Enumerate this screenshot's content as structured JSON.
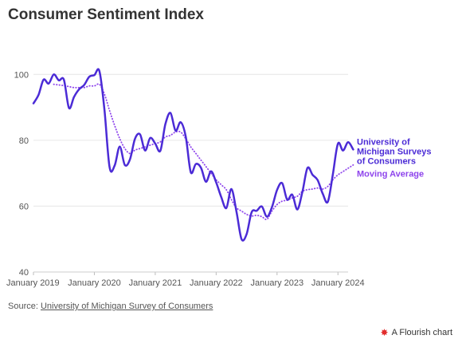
{
  "title": "Consumer Sentiment Index",
  "source": {
    "prefix": "Source: ",
    "link_text": "University of Michigan Survey of Consumers"
  },
  "credit": {
    "icon": "flourish-logo-icon",
    "label": "A Flourish chart"
  },
  "chart_data": {
    "type": "line",
    "title": "Consumer Sentiment Index",
    "xlabel": "",
    "ylabel": "",
    "ylim": [
      40,
      110
    ],
    "yticks": [
      40,
      60,
      80,
      100
    ],
    "xlim": [
      "2019-01",
      "2024-03"
    ],
    "xticks": [
      {
        "date": "2019-01",
        "label": "January 2019"
      },
      {
        "date": "2020-01",
        "label": "January 2020"
      },
      {
        "date": "2021-01",
        "label": "January 2021"
      },
      {
        "date": "2022-01",
        "label": "January 2022"
      },
      {
        "date": "2023-01",
        "label": "January 2023"
      },
      {
        "date": "2024-01",
        "label": "January 2024"
      }
    ],
    "grid": "horizontal",
    "legend": "right of lines, labels at series ends",
    "series": [
      {
        "name": "University of Michigan Surveys of Consumers",
        "label_lines": [
          "University of",
          "Michigan Surveys",
          "of Consumers"
        ],
        "color": "#4b2bd6",
        "style": "solid",
        "points": [
          [
            "2019-01",
            91.2
          ],
          [
            "2019-02",
            93.8
          ],
          [
            "2019-03",
            98.4
          ],
          [
            "2019-04",
            97.2
          ],
          [
            "2019-05",
            100.0
          ],
          [
            "2019-06",
            98.2
          ],
          [
            "2019-07",
            98.4
          ],
          [
            "2019-08",
            89.8
          ],
          [
            "2019-09",
            93.2
          ],
          [
            "2019-10",
            95.5
          ],
          [
            "2019-11",
            96.8
          ],
          [
            "2019-12",
            99.3
          ],
          [
            "2020-01",
            99.8
          ],
          [
            "2020-02",
            101.0
          ],
          [
            "2020-03",
            89.1
          ],
          [
            "2020-04",
            71.8
          ],
          [
            "2020-05",
            72.3
          ],
          [
            "2020-06",
            78.1
          ],
          [
            "2020-07",
            72.5
          ],
          [
            "2020-08",
            74.1
          ],
          [
            "2020-09",
            80.4
          ],
          [
            "2020-10",
            81.8
          ],
          [
            "2020-11",
            76.9
          ],
          [
            "2020-12",
            80.7
          ],
          [
            "2021-01",
            79.0
          ],
          [
            "2021-02",
            76.8
          ],
          [
            "2021-03",
            84.9
          ],
          [
            "2021-04",
            88.3
          ],
          [
            "2021-05",
            82.9
          ],
          [
            "2021-06",
            85.5
          ],
          [
            "2021-07",
            81.2
          ],
          [
            "2021-08",
            70.3
          ],
          [
            "2021-09",
            72.8
          ],
          [
            "2021-10",
            71.7
          ],
          [
            "2021-11",
            67.4
          ],
          [
            "2021-12",
            70.6
          ],
          [
            "2022-01",
            67.2
          ],
          [
            "2022-02",
            62.8
          ],
          [
            "2022-03",
            59.4
          ],
          [
            "2022-04",
            65.2
          ],
          [
            "2022-05",
            58.4
          ],
          [
            "2022-06",
            50.0
          ],
          [
            "2022-07",
            51.5
          ],
          [
            "2022-08",
            58.2
          ],
          [
            "2022-09",
            58.6
          ],
          [
            "2022-10",
            59.9
          ],
          [
            "2022-11",
            56.8
          ],
          [
            "2022-12",
            59.7
          ],
          [
            "2023-01",
            64.9
          ],
          [
            "2023-02",
            67.0
          ],
          [
            "2023-03",
            62.0
          ],
          [
            "2023-04",
            63.5
          ],
          [
            "2023-05",
            59.0
          ],
          [
            "2023-06",
            64.4
          ],
          [
            "2023-07",
            71.6
          ],
          [
            "2023-08",
            69.5
          ],
          [
            "2023-09",
            67.9
          ],
          [
            "2023-10",
            63.8
          ],
          [
            "2023-11",
            61.3
          ],
          [
            "2023-12",
            69.7
          ],
          [
            "2024-01",
            79.0
          ],
          [
            "2024-02",
            76.9
          ],
          [
            "2024-03",
            79.4
          ],
          [
            "2024-04",
            77.2
          ]
        ]
      },
      {
        "name": "Moving Average",
        "label_lines": [
          "Moving Average"
        ],
        "color": "#8e44ec",
        "style": "dotted",
        "points": [
          [
            "2019-05",
            97.0
          ],
          [
            "2019-06",
            96.8
          ],
          [
            "2019-07",
            96.6
          ],
          [
            "2019-08",
            96.3
          ],
          [
            "2019-09",
            96.0
          ],
          [
            "2019-10",
            96.0
          ],
          [
            "2019-11",
            96.0
          ],
          [
            "2019-12",
            96.5
          ],
          [
            "2020-01",
            96.5
          ],
          [
            "2020-02",
            97.0
          ],
          [
            "2020-03",
            94.0
          ],
          [
            "2020-04",
            89.0
          ],
          [
            "2020-05",
            84.5
          ],
          [
            "2020-06",
            80.5
          ],
          [
            "2020-07",
            77.5
          ],
          [
            "2020-08",
            76.0
          ],
          [
            "2020-09",
            77.0
          ],
          [
            "2020-10",
            77.5
          ],
          [
            "2020-11",
            78.0
          ],
          [
            "2020-12",
            78.5
          ],
          [
            "2021-01",
            79.0
          ],
          [
            "2021-02",
            79.5
          ],
          [
            "2021-03",
            81.0
          ],
          [
            "2021-04",
            81.5
          ],
          [
            "2021-05",
            82.5
          ],
          [
            "2021-06",
            82.5
          ],
          [
            "2021-07",
            80.5
          ],
          [
            "2021-08",
            78.0
          ],
          [
            "2021-09",
            76.0
          ],
          [
            "2021-10",
            74.0
          ],
          [
            "2021-11",
            72.0
          ],
          [
            "2021-12",
            70.0
          ],
          [
            "2022-01",
            68.0
          ],
          [
            "2022-02",
            66.5
          ],
          [
            "2022-03",
            65.0
          ],
          [
            "2022-04",
            62.0
          ],
          [
            "2022-05",
            59.5
          ],
          [
            "2022-06",
            58.5
          ],
          [
            "2022-07",
            57.5
          ],
          [
            "2022-08",
            57.0
          ],
          [
            "2022-09",
            57.2
          ],
          [
            "2022-10",
            56.8
          ],
          [
            "2022-11",
            56.0
          ],
          [
            "2022-12",
            58.5
          ],
          [
            "2023-01",
            60.5
          ],
          [
            "2023-02",
            61.5
          ],
          [
            "2023-03",
            61.8
          ],
          [
            "2023-04",
            62.5
          ],
          [
            "2023-05",
            63.0
          ],
          [
            "2023-06",
            64.5
          ],
          [
            "2023-07",
            65.0
          ],
          [
            "2023-08",
            65.2
          ],
          [
            "2023-09",
            65.5
          ],
          [
            "2023-10",
            65.2
          ],
          [
            "2023-11",
            66.0
          ],
          [
            "2023-12",
            68.0
          ],
          [
            "2024-01",
            69.5
          ],
          [
            "2024-02",
            70.5
          ],
          [
            "2024-03",
            71.5
          ],
          [
            "2024-04",
            72.5
          ]
        ]
      }
    ]
  }
}
